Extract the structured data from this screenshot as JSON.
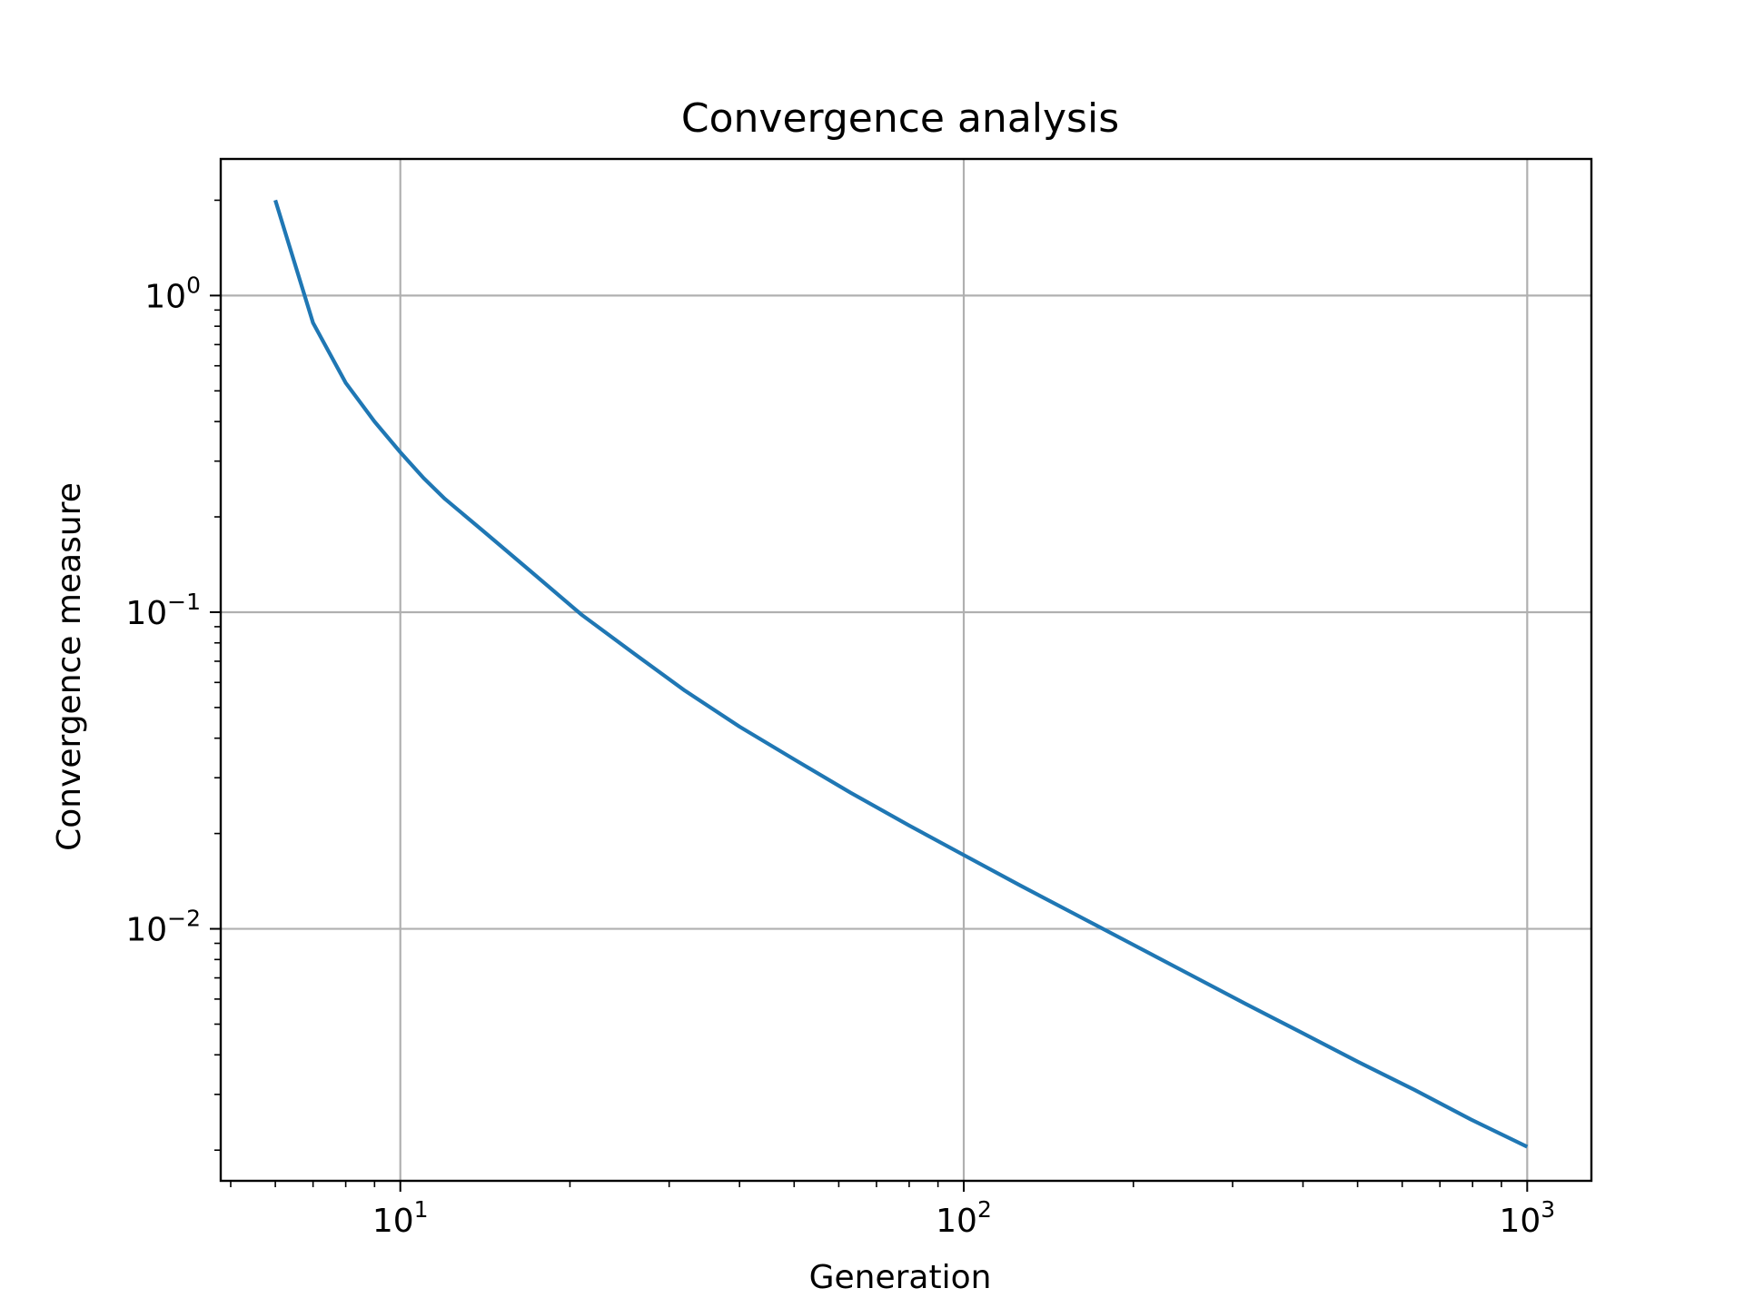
{
  "chart_data": {
    "type": "line",
    "title": "Convergence analysis",
    "xlabel": "Generation",
    "ylabel": "Convergence measure",
    "xscale": "log",
    "yscale": "log",
    "xlim": [
      4.8,
      1300
    ],
    "ylim": [
      0.0016,
      2.7
    ],
    "grid": true,
    "legend": "none",
    "x_ticks": [
      {
        "value": 10,
        "base": "10",
        "exp": "1"
      },
      {
        "value": 100,
        "base": "10",
        "exp": "2"
      },
      {
        "value": 1000,
        "base": "10",
        "exp": "3"
      }
    ],
    "y_ticks": [
      {
        "value": 1,
        "base": "10",
        "exp": "0"
      },
      {
        "value": 0.1,
        "base": "10",
        "exp": "−1"
      },
      {
        "value": 0.01,
        "base": "10",
        "exp": "−2"
      }
    ],
    "series": [
      {
        "color": "#1f77b4",
        "x": [
          6,
          7,
          8,
          9,
          10,
          11,
          12,
          14,
          17,
          21,
          26,
          32,
          40,
          50,
          63,
          80,
          100,
          126,
          158,
          200,
          251,
          316,
          398,
          501,
          631,
          794,
          1000
        ],
        "y": [
          2.0,
          0.82,
          0.53,
          0.4,
          0.32,
          0.265,
          0.228,
          0.181,
          0.135,
          0.098,
          0.074,
          0.0565,
          0.0435,
          0.0343,
          0.0269,
          0.0212,
          0.0171,
          0.0137,
          0.0111,
          0.0089,
          0.0072,
          0.0058,
          0.0047,
          0.0038,
          0.0031,
          0.0025,
          0.00205
        ]
      }
    ]
  }
}
